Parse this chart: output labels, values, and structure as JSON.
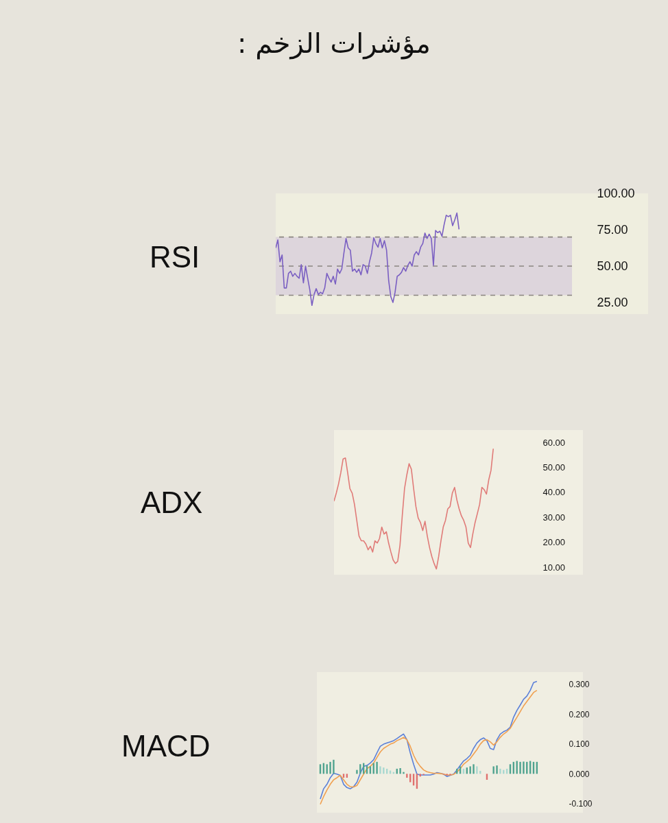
{
  "chart_data": [
    {
      "type": "other",
      "title": "مؤشرات الزخم :"
    },
    {
      "type": "line",
      "title": "RSI",
      "tick_labels": "y",
      "grid": false,
      "categories": [
        null,
        null,
        null,
        null,
        null,
        null,
        null,
        null,
        null,
        null,
        null,
        null,
        null,
        null,
        null,
        null,
        null,
        null,
        null,
        null,
        null,
        null,
        null,
        null,
        null,
        null,
        null,
        null,
        null,
        null,
        null,
        null,
        null,
        null,
        null,
        null,
        null,
        null,
        null,
        null,
        null,
        null,
        null,
        null,
        null,
        null,
        null,
        null,
        null,
        null,
        null,
        null,
        null,
        null,
        null,
        null,
        null,
        null,
        null,
        null,
        null,
        null,
        null,
        null,
        null,
        null,
        null,
        null,
        null,
        null,
        null,
        null,
        null,
        null,
        null,
        null,
        null,
        null,
        null,
        null,
        null,
        null,
        null,
        null,
        null,
        null,
        null,
        null,
        null,
        null,
        null,
        null,
        null,
        null,
        null,
        null,
        null,
        null,
        null,
        null,
        null,
        null,
        null,
        null,
        null,
        null,
        null,
        null,
        null,
        null,
        null,
        null,
        null,
        null,
        null,
        null,
        null,
        null,
        null,
        null,
        null,
        null,
        null,
        null,
        null,
        null,
        null,
        null,
        null,
        null,
        null,
        null,
        null,
        null,
        null,
        null,
        null,
        null,
        null,
        null
      ],
      "series": [
        {
          "color": "#7a5fc2",
          "values": [
            62.5,
            68,
            53,
            57.7,
            35,
            35,
            45,
            46.5,
            43,
            45,
            43,
            41.7,
            51,
            38.5,
            50,
            41.7,
            33.7,
            23,
            30.5,
            34.5,
            30.5,
            32,
            31,
            35,
            45,
            41.7,
            39,
            43,
            37.7,
            48,
            45,
            48,
            59,
            69,
            62.5,
            61,
            46.5,
            48,
            45.7,
            48,
            44,
            51,
            50,
            45,
            53,
            59,
            69.5,
            65.5,
            63,
            69,
            62.5,
            67.5,
            61,
            40,
            29,
            25,
            32,
            43,
            44,
            45.7,
            49,
            46.5,
            50.5,
            53,
            50,
            57.7,
            60,
            57.7,
            63,
            65.5,
            72.7,
            69,
            72,
            69,
            50.5,
            74.5,
            73,
            74,
            70.5,
            78.5,
            85,
            84,
            85,
            77.8,
            81.7,
            86.5,
            75.3,
            null,
            null,
            null,
            null,
            null,
            null,
            null,
            null,
            null,
            null,
            null,
            null,
            null,
            null,
            null,
            null,
            null,
            null,
            null,
            null,
            null,
            null,
            null,
            null,
            null,
            null,
            null,
            null,
            null,
            null,
            null,
            null,
            null,
            null,
            null,
            null,
            null,
            null,
            null,
            null,
            null,
            null,
            null,
            null,
            null,
            null,
            null,
            null,
            null,
            null,
            null,
            null,
            null
          ]
        }
      ],
      "ylim": [
        17,
        100
      ],
      "yticks": [
        {
          "value": 25,
          "label": "25.00"
        },
        {
          "value": 50,
          "label": "50.00"
        },
        {
          "value": 75,
          "label": "75.00"
        },
        {
          "value": 100,
          "label": "100.00"
        }
      ],
      "bands": [
        {
          "axis": "y",
          "from": 30,
          "to": 70,
          "color": "#ddd5dc"
        }
      ],
      "ref_lines": [
        {
          "axis": "y",
          "value": 70,
          "color": "#8a8580",
          "line_style": "dashed"
        },
        {
          "axis": "y",
          "value": 50,
          "color": "#8a8580",
          "line_style": "dashed"
        },
        {
          "axis": "y",
          "value": 30,
          "color": "#8a8580",
          "line_style": "dashed"
        }
      ]
    },
    {
      "type": "line",
      "title": "ADX",
      "tick_labels": "y",
      "grid": false,
      "categories": [
        null,
        null,
        null,
        null,
        null,
        null,
        null,
        null,
        null,
        null,
        null,
        null,
        null,
        null,
        null,
        null,
        null,
        null,
        null,
        null,
        null,
        null,
        null,
        null,
        null,
        null,
        null,
        null,
        null,
        null,
        null,
        null,
        null,
        null,
        null,
        null,
        null,
        null,
        null,
        null,
        null,
        null,
        null,
        null,
        null,
        null,
        null,
        null,
        null,
        null,
        null,
        null,
        null,
        null,
        null,
        null,
        null,
        null,
        null,
        null,
        null,
        null,
        null,
        null,
        null,
        null,
        null,
        null,
        null,
        null,
        null,
        null,
        null,
        null,
        null,
        null,
        null,
        null,
        null,
        null,
        null,
        null,
        null,
        null,
        null,
        null
      ],
      "series": [
        {
          "color": "#e07b78",
          "values": [
            36.5,
            39.7,
            43.4,
            47.9,
            53.4,
            53.8,
            47.9,
            41.5,
            39.7,
            35.2,
            28.8,
            22.5,
            20.6,
            20.6,
            19.3,
            17,
            18.4,
            16.1,
            20.6,
            19.7,
            21.5,
            26.1,
            23.3,
            24.2,
            19.7,
            16.1,
            12.9,
            11.5,
            12.4,
            18.8,
            30.6,
            41.5,
            47,
            51.5,
            49.3,
            41.5,
            34.3,
            29.7,
            27.9,
            24.7,
            28.4,
            22.5,
            17.9,
            14.3,
            11.5,
            9.3,
            14.3,
            20.6,
            26.1,
            28.8,
            33.4,
            34.3,
            39.7,
            42,
            37,
            33.4,
            30.6,
            28.8,
            26.1,
            19.7,
            17.9,
            23.3,
            27.9,
            31.5,
            35.2,
            42,
            41.1,
            39.3,
            45,
            48.8,
            57.5,
            null,
            null,
            null,
            null,
            null,
            null,
            null,
            null,
            null,
            null,
            null,
            null,
            null,
            null,
            null
          ]
        }
      ],
      "ylim": [
        7,
        65
      ],
      "yticks": [
        {
          "value": 10,
          "label": "10.00"
        },
        {
          "value": 20,
          "label": "20.00"
        },
        {
          "value": 30,
          "label": "30.00"
        },
        {
          "value": 40,
          "label": "40.00"
        },
        {
          "value": 50,
          "label": "50.00"
        },
        {
          "value": 60,
          "label": "60.00"
        }
      ]
    },
    {
      "type": "line",
      "title": "MACD",
      "tick_labels": "y",
      "grid": false,
      "categories": [
        null,
        null,
        null,
        null,
        null,
        null,
        null,
        null,
        null,
        null,
        null,
        null,
        null,
        null,
        null,
        null,
        null,
        null,
        null,
        null,
        null,
        null,
        null,
        null,
        null,
        null,
        null,
        null,
        null,
        null,
        null,
        null,
        null,
        null,
        null,
        null,
        null,
        null,
        null,
        null,
        null,
        null,
        null,
        null,
        null,
        null,
        null,
        null,
        null,
        null,
        null,
        null,
        null,
        null,
        null,
        null,
        null,
        null,
        null,
        null,
        null,
        null,
        null,
        null,
        null,
        null,
        null,
        null,
        null,
        null,
        null,
        null
      ],
      "series": [
        {
          "type": "bar",
          "values": [
            0.032,
            0.036,
            0.032,
            0.04,
            0.047,
            null,
            null,
            -0.013,
            -0.013,
            null,
            null,
            0.013,
            0.032,
            0.036,
            0.028,
            0.025,
            0.036,
            0.04,
            0.025,
            0.021,
            0.017,
            0.011,
            0.006,
            0.017,
            0.019,
            0.006,
            -0.013,
            -0.028,
            -0.039,
            -0.05,
            -0.009,
            -0.004,
            null,
            null,
            null,
            null,
            null,
            -0.002,
            -0.005,
            -0.004,
            null,
            0.017,
            0.025,
            0.017,
            0.021,
            0.025,
            0.032,
            0.025,
            0.01,
            null,
            -0.02,
            null,
            0.025,
            0.028,
            0.017,
            0.013,
            0.017,
            0.032,
            0.04,
            0.043,
            0.04,
            0.041,
            0.04,
            0.043,
            0.04,
            0.04,
            null,
            null,
            null,
            null,
            null,
            null
          ],
          "colors": [
            "#4fa38f",
            "#4fa38f",
            "#4fa38f",
            "#4fa38f",
            "#4fa38f",
            null,
            null,
            "#e0706e",
            "#e0706e",
            null,
            null,
            "#4fa38f",
            "#4fa38f",
            "#4fa38f",
            "#4fa38f",
            "#4fa38f",
            "#4fa38f",
            "#4fa38f",
            "#a8d8d0",
            "#a8d8d0",
            "#a8d8d0",
            "#a8d8d0",
            "#a8d8d0",
            "#4fa38f",
            "#4fa38f",
            "#4fa38f",
            "#e0706e",
            "#e0706e",
            "#e0706e",
            "#e0706e",
            "#e0706e",
            "#e0706e",
            null,
            null,
            null,
            null,
            null,
            "#e0706e",
            "#e0706e",
            "#e0706e",
            null,
            "#4fa38f",
            "#4fa38f",
            "#a8d8d0",
            "#4fa38f",
            "#4fa38f",
            "#4fa38f",
            "#a8d8d0",
            "#a8d8d0",
            null,
            "#e0706e",
            null,
            "#4fa38f",
            "#4fa38f",
            "#a8d8d0",
            "#a8d8d0",
            "#a8d8d0",
            "#4fa38f",
            "#4fa38f",
            "#4fa38f",
            "#4fa38f",
            "#4fa38f",
            "#4fa38f",
            "#4fa38f",
            "#4fa38f",
            "#4fa38f",
            null,
            null,
            null,
            null,
            null,
            null
          ]
        },
        {
          "color": "#5a7fd8",
          "values": [
            -0.084,
            -0.05,
            -0.035,
            -0.013,
            0.002,
            -0.001,
            -0.005,
            -0.035,
            -0.046,
            -0.05,
            -0.043,
            -0.028,
            0.002,
            0.025,
            0.028,
            0.036,
            0.047,
            0.07,
            0.092,
            0.099,
            0.103,
            0.107,
            0.111,
            0.118,
            0.126,
            0.133,
            0.114,
            0.07,
            0.032,
            -0.001,
            -0.004,
            -0.004,
            -0.004,
            -0.004,
            -0.001,
            0.004,
            0.002,
            -0.001,
            -0.009,
            -0.005,
            -0.001,
            0.013,
            0.028,
            0.043,
            0.051,
            0.062,
            0.085,
            0.103,
            0.114,
            0.12,
            0.111,
            0.085,
            0.081,
            0.114,
            0.133,
            0.141,
            0.146,
            0.156,
            0.189,
            0.212,
            0.23,
            0.249,
            0.26,
            0.279,
            0.305,
            0.309,
            null,
            null,
            null,
            null,
            null,
            null
          ]
        },
        {
          "color": "#f0a050",
          "values": [
            -0.102,
            -0.076,
            -0.054,
            -0.035,
            -0.02,
            -0.013,
            -0.005,
            -0.02,
            -0.035,
            -0.043,
            -0.044,
            -0.039,
            -0.02,
            -0.001,
            0.017,
            0.025,
            0.036,
            0.055,
            0.073,
            0.085,
            0.092,
            0.099,
            0.103,
            0.111,
            0.116,
            0.122,
            0.114,
            0.092,
            0.062,
            0.04,
            0.025,
            0.013,
            0.007,
            0.004,
            0.002,
            0.002,
            0.001,
            -0.001,
            -0.004,
            -0.004,
            -0.002,
            0.006,
            0.017,
            0.032,
            0.041,
            0.051,
            0.066,
            0.081,
            0.099,
            0.111,
            0.114,
            0.107,
            0.096,
            0.107,
            0.122,
            0.133,
            0.141,
            0.152,
            0.171,
            0.189,
            0.208,
            0.227,
            0.242,
            0.257,
            0.272,
            0.279,
            null,
            null,
            null,
            null,
            null,
            null
          ]
        }
      ],
      "ylim": [
        -0.13,
        0.34
      ],
      "yticks": [
        {
          "value": -0.1,
          "label": "-0.100"
        },
        {
          "value": 0,
          "label": "0.000"
        },
        {
          "value": 0.1,
          "label": "0.100"
        },
        {
          "value": 0.2,
          "label": "0.200"
        },
        {
          "value": 0.3,
          "label": "0.300"
        }
      ]
    }
  ]
}
